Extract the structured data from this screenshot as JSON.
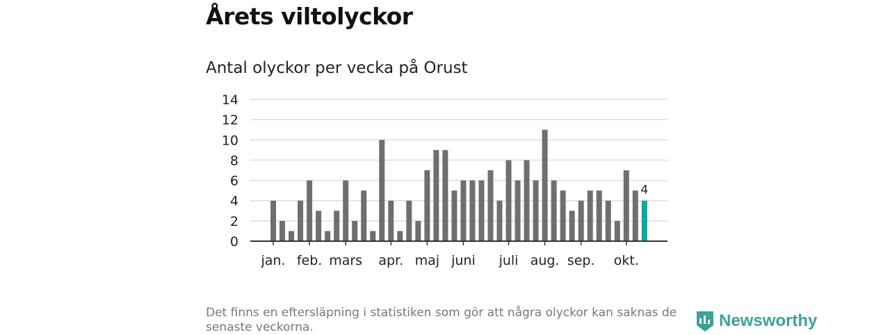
{
  "header": {
    "title": "Årets viltolyckor",
    "subtitle": "Antal olyckor per vecka på Orust"
  },
  "footer": {
    "note": "Det finns en eftersläpning i statistiken som gör att några olyckor kan saknas de senaste veckorna.",
    "brand": "Newsworthy"
  },
  "colors": {
    "bar": "#6f6e73",
    "highlight": "#14a699",
    "grid": "#dddddd",
    "axis": "#333333",
    "brand": "#3aa396"
  },
  "chart_data": {
    "type": "bar",
    "title": "Antal olyckor per vecka på Orust",
    "xlabel": "",
    "ylabel": "",
    "ylim": [
      0,
      14
    ],
    "yticks": [
      0,
      2,
      4,
      6,
      8,
      10,
      12,
      14
    ],
    "values": [
      4,
      2,
      1,
      4,
      6,
      3,
      1,
      3,
      6,
      2,
      5,
      1,
      10,
      4,
      1,
      4,
      2,
      7,
      9,
      9,
      5,
      6,
      6,
      6,
      7,
      4,
      8,
      6,
      8,
      6,
      11,
      6,
      5,
      3,
      4,
      5,
      5,
      4,
      2,
      7,
      5,
      4
    ],
    "month_ticks": [
      {
        "label": "jan.",
        "index": 0
      },
      {
        "label": "feb.",
        "index": 4
      },
      {
        "label": "mars",
        "index": 8
      },
      {
        "label": "apr.",
        "index": 13
      },
      {
        "label": "maj",
        "index": 17
      },
      {
        "label": "juni",
        "index": 21
      },
      {
        "label": "juli",
        "index": 26
      },
      {
        "label": "aug.",
        "index": 30
      },
      {
        "label": "sep.",
        "index": 34
      },
      {
        "label": "okt.",
        "index": 39
      }
    ],
    "highlight_last": true,
    "last_label": "4",
    "grid": true
  }
}
